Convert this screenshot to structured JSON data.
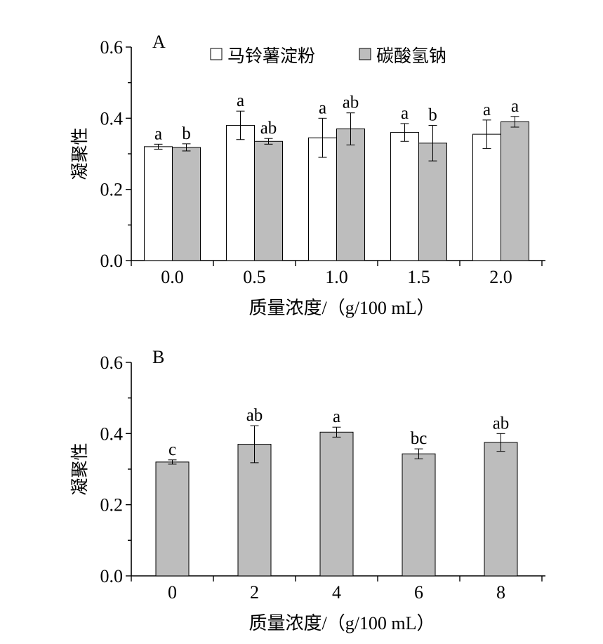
{
  "chart_data": [
    {
      "panel_label": "A",
      "type": "bar",
      "categories": [
        "0.0",
        "0.5",
        "1.0",
        "1.5",
        "2.0"
      ],
      "series": [
        {
          "name": "马铃薯淀粉",
          "color": "#ffffff",
          "values": [
            0.32,
            0.38,
            0.345,
            0.36,
            0.355
          ],
          "errors": [
            0.007,
            0.04,
            0.055,
            0.025,
            0.04
          ],
          "sig_labels": [
            "a",
            "a",
            "a",
            "a",
            "a"
          ]
        },
        {
          "name": "碳酸氢钠",
          "color": "#bdbdbd",
          "values": [
            0.318,
            0.335,
            0.37,
            0.33,
            0.39
          ],
          "errors": [
            0.01,
            0.008,
            0.045,
            0.05,
            0.015
          ],
          "sig_labels": [
            "b",
            "ab",
            "ab",
            "b",
            "a"
          ]
        }
      ],
      "ylim": [
        0,
        0.6
      ],
      "yticks": [
        "0.0",
        "0.2",
        "0.4",
        "0.6"
      ],
      "ylabel": "凝聚性",
      "xlabel": "质量浓度/（g/100 mL）",
      "legend_position": "top"
    },
    {
      "panel_label": "B",
      "type": "bar",
      "categories": [
        "0",
        "2",
        "4",
        "6",
        "8"
      ],
      "series": [
        {
          "color": "#bdbdbd",
          "values": [
            0.32,
            0.37,
            0.404,
            0.343,
            0.375
          ],
          "errors": [
            0.006,
            0.052,
            0.014,
            0.014,
            0.025
          ],
          "sig_labels": [
            "c",
            "ab",
            "a",
            "bc",
            "ab"
          ]
        }
      ],
      "ylim": [
        0,
        0.6
      ],
      "yticks": [
        "0.0",
        "0.2",
        "0.4",
        "0.6"
      ],
      "ylabel": "凝聚性",
      "xlabel": "质量浓度/（g/100 mL）"
    }
  ]
}
